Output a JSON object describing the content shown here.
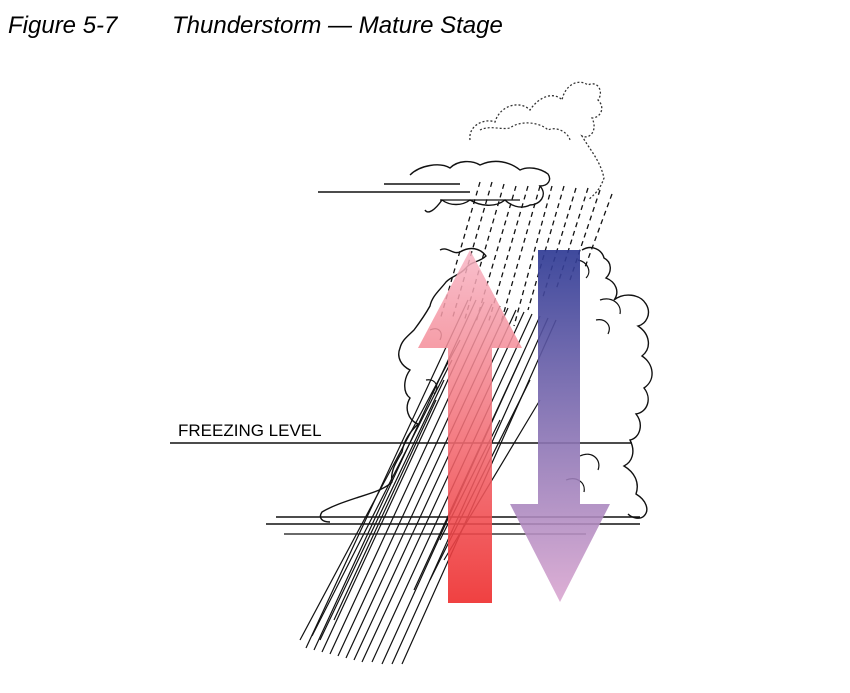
{
  "figure": {
    "number": "Figure 5-7",
    "title": "Thunderstorm — Mature Stage"
  },
  "labels": {
    "freezing_level": "FREEZING LEVEL"
  },
  "colors": {
    "updraft_top": "#f7b4c4",
    "updraft_bottom": "#ee2c2c",
    "downdraft_top": "#2e3a94",
    "downdraft_bottom": "#d9a4cf"
  },
  "arrows": {
    "updraft": "up",
    "downdraft": "down"
  }
}
